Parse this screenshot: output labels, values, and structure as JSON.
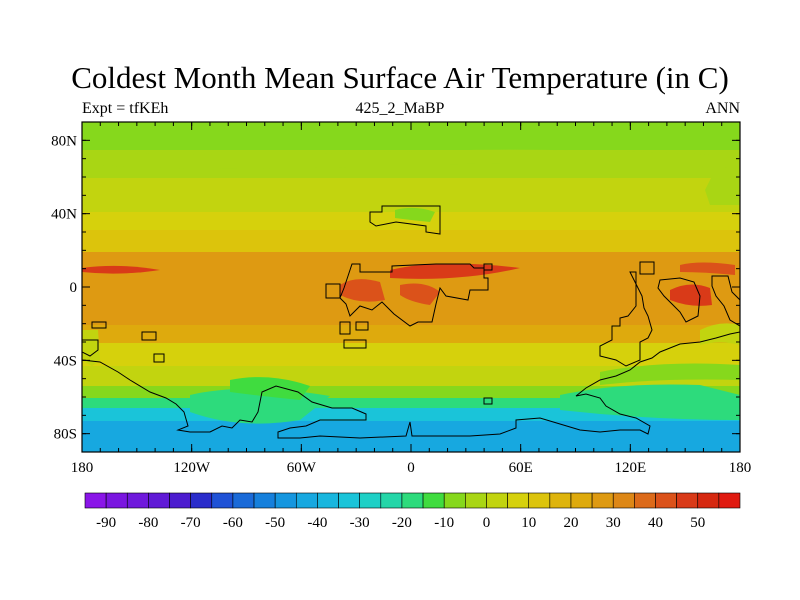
{
  "title": "Coldest Month Mean Surface Air Temperature (in C)",
  "subtitle_left": "Expt = tfKEh",
  "subtitle_center": "425_2_MaBP",
  "subtitle_right": "ANN",
  "map": {
    "lon_range": [
      -180,
      180
    ],
    "lat_range": [
      -90,
      90
    ],
    "y_ticks": [
      {
        "lat": 80,
        "label": "80N"
      },
      {
        "lat": 40,
        "label": "40N"
      },
      {
        "lat": 0,
        "label": "0"
      },
      {
        "lat": -40,
        "label": "40S"
      },
      {
        "lat": -80,
        "label": "80S"
      }
    ],
    "x_ticks": [
      {
        "lon": -180,
        "label": "180"
      },
      {
        "lon": -120,
        "label": "120W"
      },
      {
        "lon": -60,
        "label": "60W"
      },
      {
        "lon": 0,
        "label": "0"
      },
      {
        "lon": 60,
        "label": "60E"
      },
      {
        "lon": 120,
        "label": "120E"
      },
      {
        "lon": 180,
        "label": "180"
      }
    ]
  },
  "colorbar": {
    "colors": [
      "#8a15e8",
      "#7a16e0",
      "#6f19dc",
      "#601ad6",
      "#4c1ccf",
      "#2a2ccb",
      "#1f52d6",
      "#1a6ad8",
      "#1680dc",
      "#1596df",
      "#17a8e0",
      "#18b6de",
      "#1ac4d9",
      "#1ed0c6",
      "#24d6a8",
      "#2ddb7c",
      "#40dc3f",
      "#86d81c",
      "#a9d614",
      "#c2d40f",
      "#d6d10c",
      "#dcc40c",
      "#deb40c",
      "#deaa0d",
      "#de9a12",
      "#dd8716",
      "#dc6a1a",
      "#db521a",
      "#d93a18",
      "#d62810",
      "#e01a10"
    ],
    "labels": [
      "-90",
      "-80",
      "-70",
      "-60",
      "-50",
      "-40",
      "-30",
      "-20",
      "-10",
      "0",
      "10",
      "20",
      "30",
      "40",
      "50"
    ]
  }
}
